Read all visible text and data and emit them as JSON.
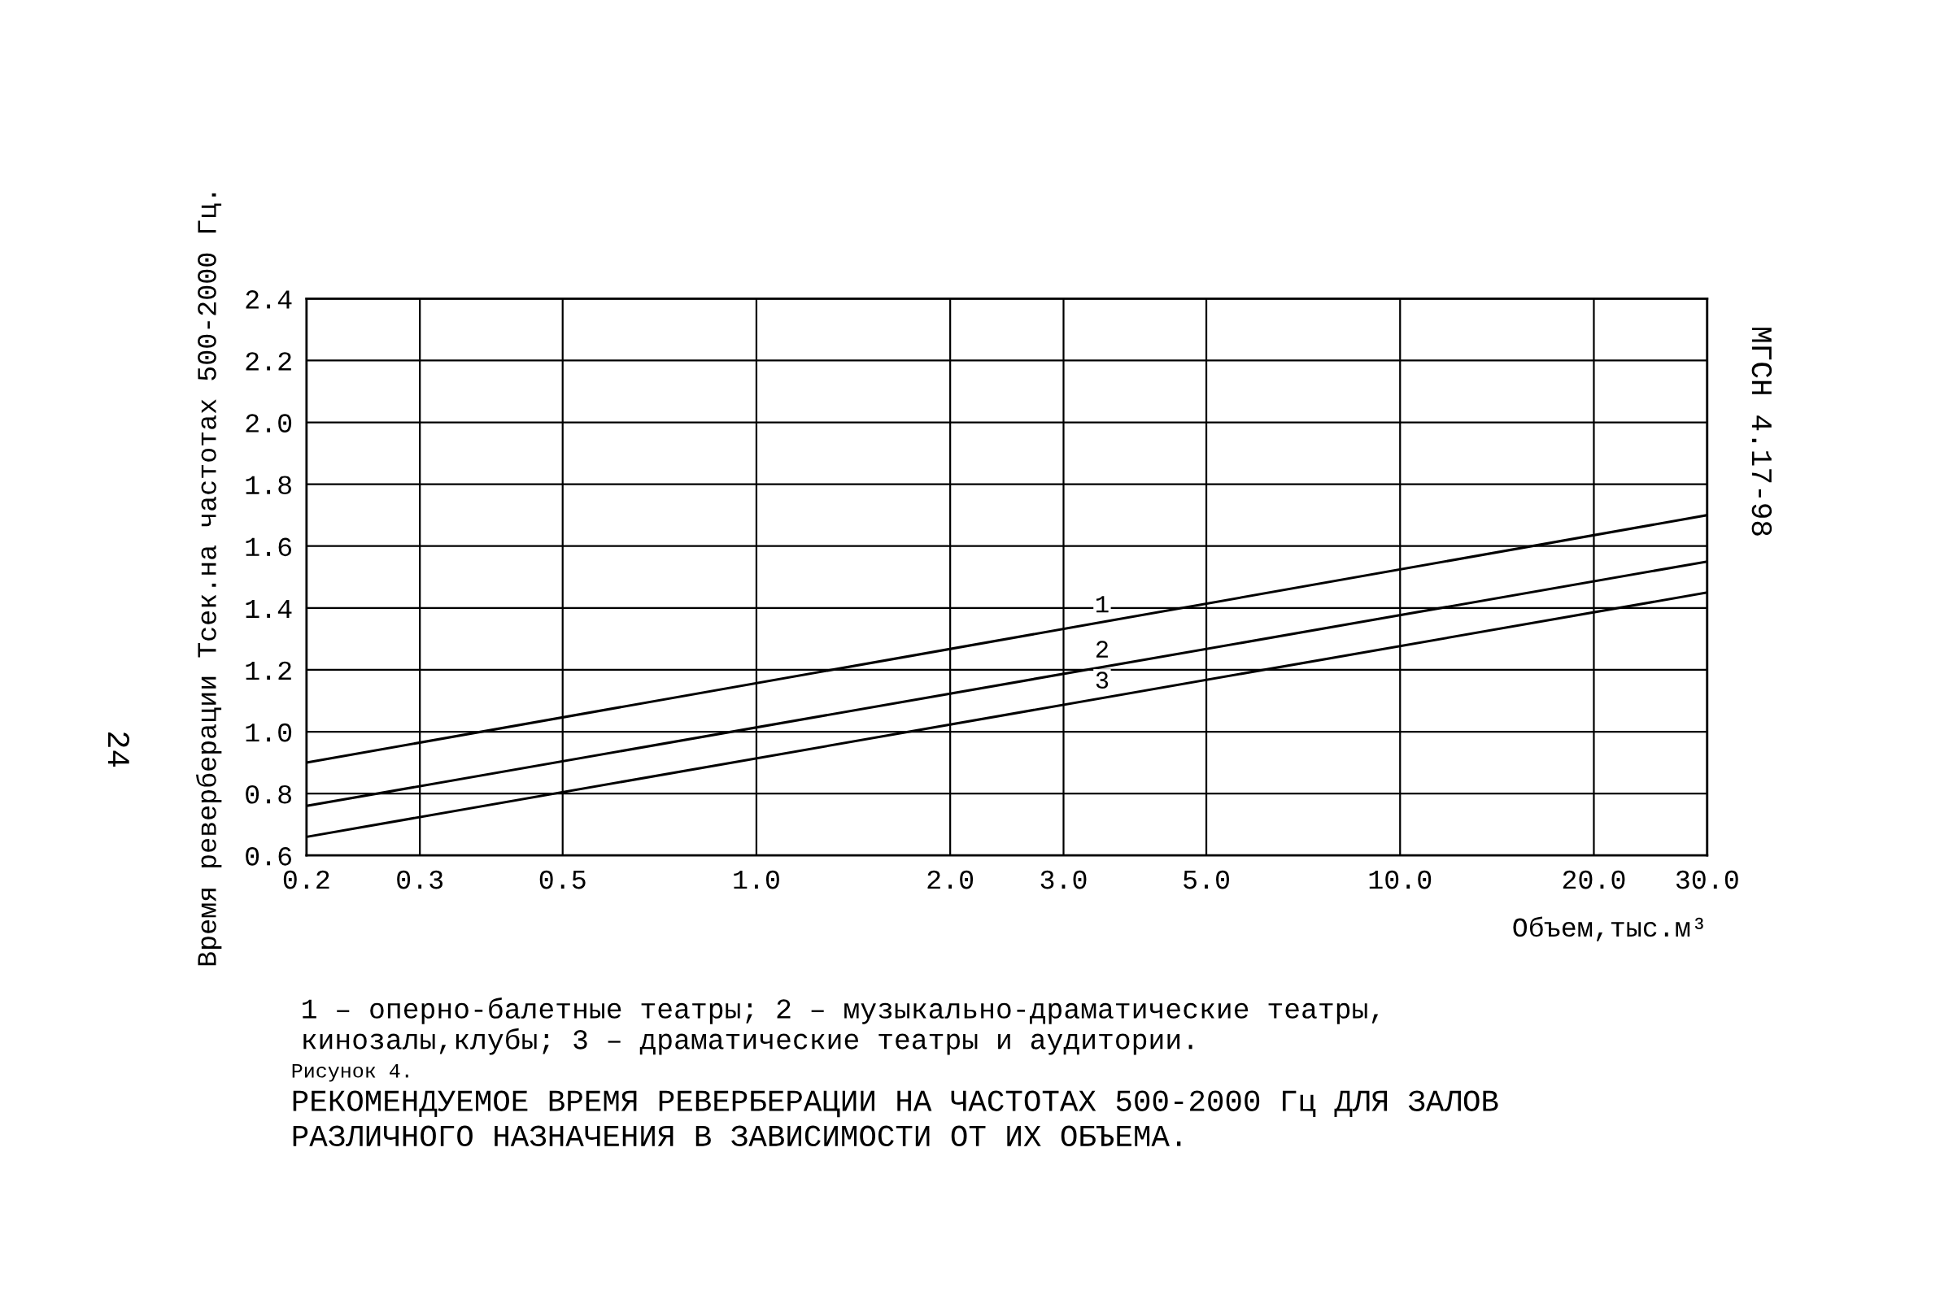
{
  "chart_data": {
    "type": "line",
    "title": "РЕКОМЕНДУЕМОЕ ВРЕМЯ РЕВЕРБЕРАЦИИ НА ЧАСТОТАХ 500-2000 Гц ДЛЯ ЗАЛОВ\nРАЗЛИЧНОГО НАЗНАЧЕНИЯ В ЗАВИСИМОСТИ ОТ ИХ ОБЪЕМА.",
    "xlabel": "Объем,тыс.м³",
    "ylabel": "Время реверберации Тсек.на частотах 500-2000 Гц.",
    "log": "x",
    "x": [
      0.2,
      30
    ],
    "series": [
      {
        "name": "1",
        "color": "#000000",
        "values": [
          0.9,
          1.7
        ]
      },
      {
        "name": "2",
        "color": "#000000",
        "values": [
          0.76,
          1.55
        ]
      },
      {
        "name": "3",
        "color": "#000000",
        "values": [
          0.66,
          1.45
        ]
      }
    ],
    "xlim": [
      0.2,
      30
    ],
    "xticks": [
      {
        "value": 0.2,
        "label": "0.2"
      },
      {
        "value": 0.3,
        "label": "0.3"
      },
      {
        "value": 0.5,
        "label": "0.5"
      },
      {
        "value": 1.0,
        "label": "1.0"
      },
      {
        "value": 2.0,
        "label": "2.0"
      },
      {
        "value": 3.0,
        "label": "3.0"
      },
      {
        "value": 5.0,
        "label": "5.0"
      },
      {
        "value": 10.0,
        "label": "10.0"
      },
      {
        "value": 20.0,
        "label": "20.0"
      },
      {
        "value": 30.0,
        "label": "30.0"
      }
    ],
    "ylim": [
      0.6,
      2.4
    ],
    "yticks": [
      {
        "value": 0.6,
        "label": "0.6"
      },
      {
        "value": 0.8,
        "label": "0.8"
      },
      {
        "value": 1.0,
        "label": "1.0"
      },
      {
        "value": 1.2,
        "label": "1.2"
      },
      {
        "value": 1.4,
        "label": "1.4"
      },
      {
        "value": 1.6,
        "label": "1.6"
      },
      {
        "value": 1.8,
        "label": "1.8"
      },
      {
        "value": 2.0,
        "label": "2.0"
      },
      {
        "value": 2.2,
        "label": "2.2"
      },
      {
        "value": 2.4,
        "label": "2.4"
      }
    ],
    "grid": true,
    "line_style": "solid",
    "annotations": [
      "1 – оперно-балетные театры; 2 – музыкально-драматические театры,\nкинозалы,клубы; 3 – драматические театры и аудитории.",
      "Рисунок 4.",
      "МГСН 4.17-98",
      "24"
    ]
  }
}
